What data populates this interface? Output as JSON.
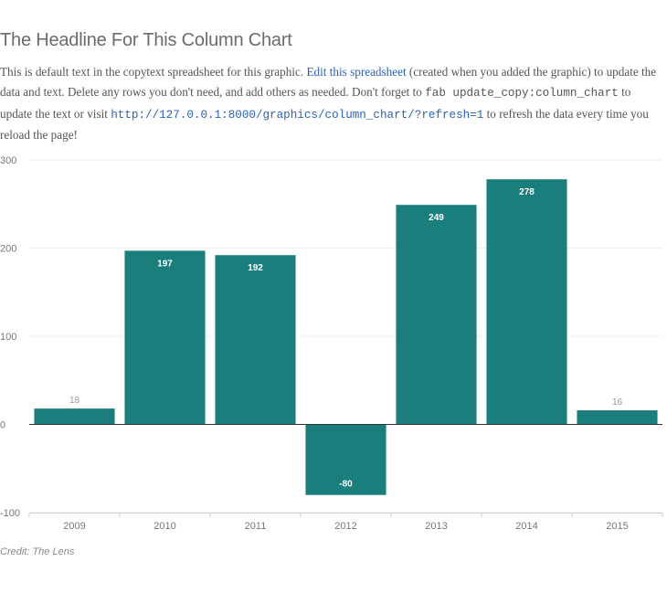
{
  "headline": "The Headline For This Column Chart",
  "copy": {
    "intro": "This is default text in the copytext spreadsheet for this graphic. ",
    "edit_link": "Edit this spreadsheet",
    "middle": " (created when you added the graphic) to update the data and text. Delete any rows you don't need, and add others as needed. Don't forget to ",
    "command": "fab update_copy:column_chart",
    "after_command": " to update the text or visit ",
    "refresh_url": "http://127.0.0.1:8000/graphics/column_chart/?refresh=1",
    "outro": " to refresh the data every time you reload the page!"
  },
  "credit": "Credit: The Lens",
  "colors": {
    "bar": "#1a7f7c",
    "label_inside": "#ffffff",
    "label_outside": "#999999",
    "gridline": "#eeeeee",
    "zero_line": "#333333",
    "axis_text": "#777777"
  },
  "chart_data": {
    "type": "bar",
    "categories": [
      "2009",
      "2010",
      "2011",
      "2012",
      "2013",
      "2014",
      "2015"
    ],
    "values": [
      18,
      197,
      192,
      -80,
      249,
      278,
      16
    ],
    "data_labels": [
      "18",
      "197",
      "192",
      "-80",
      "249",
      "278",
      "16"
    ],
    "y_ticks": [
      -100,
      0,
      100,
      200,
      300
    ],
    "y_tick_labels": [
      "-100",
      "0",
      "100",
      "200",
      "300"
    ],
    "ylim": [
      -100,
      300
    ],
    "grid": true,
    "title": "",
    "xlabel": "",
    "ylabel": ""
  }
}
